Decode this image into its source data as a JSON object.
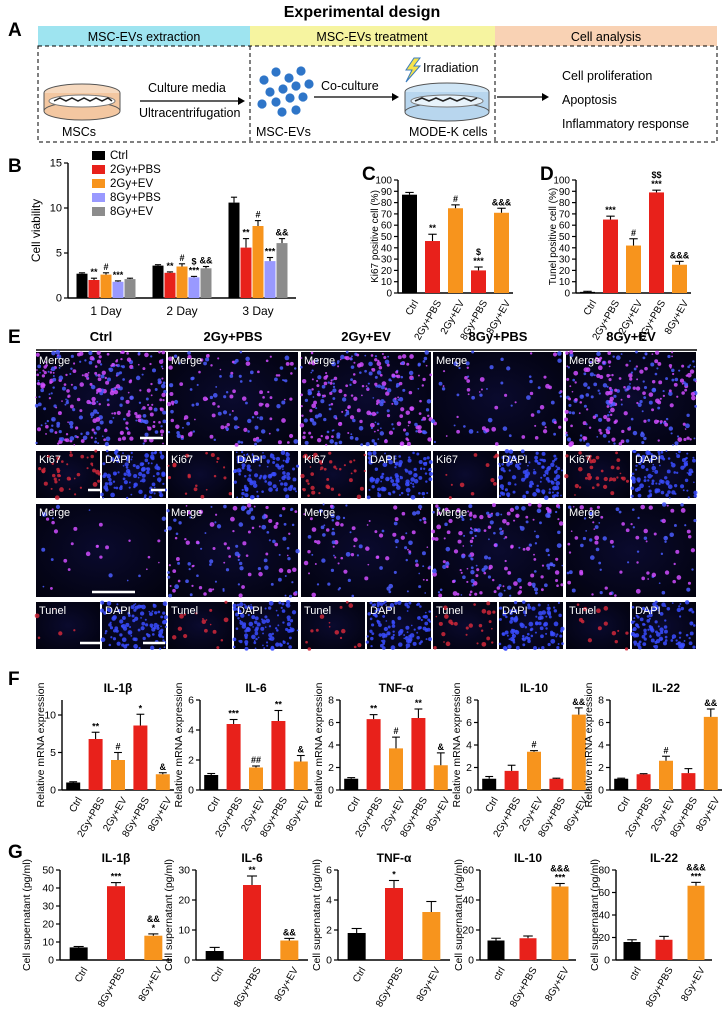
{
  "panel_letters": {
    "a": "A",
    "b": "B",
    "c": "C",
    "d": "D",
    "e": "E",
    "f": "F",
    "g": "G"
  },
  "design": {
    "title": "Experimental  design",
    "stages": [
      "MSC-EVs extraction",
      "MSC-EVs treatment",
      "Cell analysis"
    ],
    "stage_colors": [
      "#9ee4f0",
      "#f6f4a0",
      "#f9d2b4"
    ],
    "culture_media": "Culture media",
    "ultracentrifugation": "Ultracentrifugation",
    "mscs": "MSCs",
    "co_culture": "Co-culture",
    "irradiation": "Irradiation",
    "msc_evs": "MSC-EVs",
    "mode_k": "MODE-K cells",
    "analysis": [
      "Cell proliferation",
      "Apoptosis",
      "Inflammatory response"
    ]
  },
  "colors": {
    "ctrl": "#000000",
    "pbs": "#e8211b",
    "ev": "#f7941d",
    "pbs8": "#9999ff",
    "ev8": "#8c8c8c",
    "title_red": "#e8211b",
    "ev_cell": "#2e75c8"
  },
  "micro": {
    "groups": [
      "Ctrl",
      "2Gy+PBS",
      "2Gy+EV",
      "8Gy+PBS",
      "8Gy+EV"
    ],
    "merge": "Merge",
    "ki67": "Ki67",
    "dapi": "DAPI",
    "tunel": "Tunel"
  },
  "chart_data": [
    {
      "id": "B",
      "type": "bar",
      "categories": [
        "1 Day",
        "2 Day",
        "3 Day"
      ],
      "ylabel": "Cell viability",
      "ylim": [
        0,
        15
      ],
      "yticks": [
        0,
        5,
        10,
        15
      ],
      "series": [
        {
          "name": "Ctrl",
          "color": "#000000",
          "values": [
            2.7,
            3.6,
            10.6
          ],
          "err": [
            0.1,
            0.1,
            0.6
          ],
          "sig": [
            "",
            "",
            ""
          ]
        },
        {
          "name": "2Gy+PBS",
          "color": "#e8211b",
          "values": [
            2.0,
            2.8,
            5.6
          ],
          "err": [
            0.2,
            0.1,
            1.0
          ],
          "sig": [
            "**",
            "**",
            "**"
          ]
        },
        {
          "name": "2Gy+EV",
          "color": "#f7941d",
          "values": [
            2.6,
            3.5,
            8.0
          ],
          "err": [
            0.2,
            0.3,
            0.6
          ],
          "sig": [
            "#",
            "#",
            "#"
          ]
        },
        {
          "name": "8Gy+PBS",
          "color": "#9999ff",
          "values": [
            1.8,
            2.3,
            4.1
          ],
          "err": [
            0.1,
            0.1,
            0.4
          ],
          "sig": [
            "***",
            "$\n***",
            "***"
          ]
        },
        {
          "name": "8Gy+EV",
          "color": "#8c8c8c",
          "values": [
            2.1,
            3.3,
            6.1
          ],
          "err": [
            0.1,
            0.2,
            0.5
          ],
          "sig": [
            "",
            "&&",
            "&&"
          ]
        }
      ]
    },
    {
      "id": "C",
      "type": "bar",
      "categories": [
        "Ctrl",
        "2Gy+PBS",
        "2Gy+EV",
        "8Gy+PBS",
        "8Gy+EV"
      ],
      "ylabel": "Ki67 positive cell (%)",
      "ylim": [
        0,
        100
      ],
      "yticks": [
        0,
        10,
        20,
        30,
        40,
        50,
        60,
        70,
        80,
        90,
        100
      ],
      "values": [
        87,
        46,
        75,
        20,
        71
      ],
      "err": [
        2,
        6,
        3,
        3,
        4
      ],
      "colors": [
        "#000000",
        "#e8211b",
        "#f7941d",
        "#e8211b",
        "#f7941d"
      ],
      "sig": [
        "",
        "**",
        "#",
        "$\n***",
        "&&&"
      ]
    },
    {
      "id": "D",
      "type": "bar",
      "categories": [
        "Ctrl",
        "2Gy+PBS",
        "2Gy+EV",
        "8Gy+PBS",
        "8Gy+EV"
      ],
      "ylabel": "Tunel positive cell (%)",
      "ylim": [
        0,
        100
      ],
      "yticks": [
        0,
        10,
        20,
        30,
        40,
        50,
        60,
        70,
        80,
        90,
        100
      ],
      "values": [
        1,
        65,
        42,
        89,
        25
      ],
      "err": [
        0.5,
        3,
        6,
        2,
        3
      ],
      "colors": [
        "#000000",
        "#e8211b",
        "#f7941d",
        "#e8211b",
        "#f7941d"
      ],
      "sig": [
        "",
        "***",
        "#",
        "$$\n***",
        "&&&"
      ]
    },
    {
      "id": "F1",
      "type": "bar",
      "title": "IL-1β",
      "categories": [
        "Ctrl",
        "2Gy+PBS",
        "2Gy+EV",
        "8Gy+PBS",
        "8Gy+EV"
      ],
      "ylabel": "Relative mRNA expression",
      "ylim": [
        0,
        12
      ],
      "yticks": [
        0,
        5,
        10
      ],
      "values": [
        1.0,
        6.8,
        4.0,
        8.6,
        2.1
      ],
      "err": [
        0.1,
        0.9,
        1.0,
        1.5,
        0.2
      ],
      "colors": [
        "#000000",
        "#e8211b",
        "#f7941d",
        "#e8211b",
        "#f7941d"
      ],
      "sig": [
        "",
        "**",
        "#",
        "*",
        "&"
      ]
    },
    {
      "id": "F2",
      "type": "bar",
      "title": "IL-6",
      "categories": [
        "Ctrl",
        "2Gy+PBS",
        "2Gy+EV",
        "8Gy+PBS",
        "8Gy+EV"
      ],
      "ylabel": "Relative mRNA expression",
      "ylim": [
        0,
        6
      ],
      "yticks": [
        0,
        2,
        4,
        6
      ],
      "values": [
        1.0,
        4.4,
        1.5,
        4.6,
        1.9
      ],
      "err": [
        0.1,
        0.3,
        0.1,
        0.7,
        0.4
      ],
      "colors": [
        "#000000",
        "#e8211b",
        "#f7941d",
        "#e8211b",
        "#f7941d"
      ],
      "sig": [
        "",
        "***",
        "##",
        "**",
        "&"
      ]
    },
    {
      "id": "F3",
      "type": "bar",
      "title": "TNF-α",
      "categories": [
        "Ctrl",
        "2Gy+PBS",
        "2Gy+EV",
        "8Gy+PBS",
        "8Gy+EV"
      ],
      "ylabel": "Relative mRNA expression",
      "ylim": [
        0,
        8
      ],
      "yticks": [
        0,
        2,
        4,
        6,
        8
      ],
      "values": [
        1.0,
        6.3,
        3.7,
        6.4,
        2.2
      ],
      "err": [
        0.1,
        0.4,
        1.0,
        0.8,
        1.1
      ],
      "colors": [
        "#000000",
        "#e8211b",
        "#f7941d",
        "#e8211b",
        "#f7941d"
      ],
      "sig": [
        "",
        "**",
        "#",
        "**",
        "&"
      ]
    },
    {
      "id": "F4",
      "type": "bar",
      "title": "IL-10",
      "categories": [
        "Ctrl",
        "2Gy+PBS",
        "2Gy+EV",
        "8Gy+PBS",
        "8Gy+EV"
      ],
      "ylabel": "Relative mRNA expression",
      "ylim": [
        0,
        8
      ],
      "yticks": [
        0,
        2,
        4,
        6,
        8
      ],
      "values": [
        1.0,
        1.7,
        3.4,
        1.0,
        6.7
      ],
      "err": [
        0.2,
        0.5,
        0.1,
        0.05,
        0.6
      ],
      "colors": [
        "#000000",
        "#e8211b",
        "#f7941d",
        "#e8211b",
        "#f7941d"
      ],
      "sig": [
        "",
        "",
        "#",
        "",
        "&&"
      ]
    },
    {
      "id": "F5",
      "type": "bar",
      "title": "IL-22",
      "categories": [
        "Ctrl",
        "2Gy+PBS",
        "2Gy+EV",
        "8Gy+PBS",
        "8Gy+EV"
      ],
      "ylabel": "Relative mRNA expression",
      "ylim": [
        0,
        8
      ],
      "yticks": [
        0,
        2,
        4,
        6,
        8
      ],
      "values": [
        1.0,
        1.4,
        2.6,
        1.5,
        6.5
      ],
      "err": [
        0.05,
        0.05,
        0.4,
        0.4,
        0.7
      ],
      "colors": [
        "#000000",
        "#e8211b",
        "#f7941d",
        "#e8211b",
        "#f7941d"
      ],
      "sig": [
        "",
        "",
        "#",
        "",
        "&&"
      ]
    },
    {
      "id": "G1",
      "type": "bar",
      "title": "IL-1β",
      "categories": [
        "Ctrl",
        "8Gy+PBS",
        "8Gy+EV"
      ],
      "ylabel": "Cell supernatant (pg/ml)",
      "ylim": [
        0,
        50
      ],
      "yticks": [
        0,
        10,
        20,
        30,
        40,
        50
      ],
      "values": [
        7,
        41,
        13.5
      ],
      "err": [
        0.5,
        2,
        1
      ],
      "colors": [
        "#000000",
        "#e8211b",
        "#f7941d"
      ],
      "sig": [
        "",
        "***",
        "&&\n*"
      ]
    },
    {
      "id": "G2",
      "type": "bar",
      "title": "IL-6",
      "categories": [
        "Ctrl",
        "8Gy+PBS",
        "8Gy+EV"
      ],
      "ylabel": "Cell supernatant (pg/ml)",
      "ylim": [
        0,
        30
      ],
      "yticks": [
        0,
        10,
        20,
        30
      ],
      "values": [
        3,
        25,
        6.5
      ],
      "err": [
        1.2,
        3,
        0.7
      ],
      "colors": [
        "#000000",
        "#e8211b",
        "#f7941d"
      ],
      "sig": [
        "",
        "**",
        "&&"
      ]
    },
    {
      "id": "G3",
      "type": "bar",
      "title": "TNF-α",
      "categories": [
        "Ctrl",
        "8Gy+PBS",
        "8Gy+EV"
      ],
      "ylabel": "Cell supernatant (pg/ml)",
      "ylim": [
        0,
        6
      ],
      "yticks": [
        0,
        2,
        4,
        6
      ],
      "values": [
        1.8,
        4.8,
        3.2
      ],
      "err": [
        0.3,
        0.5,
        0.7
      ],
      "colors": [
        "#000000",
        "#e8211b",
        "#f7941d"
      ],
      "sig": [
        "",
        "*",
        ""
      ]
    },
    {
      "id": "G4",
      "type": "bar",
      "title": "IL-10",
      "categories": [
        "ctrl",
        "8Gy+PBS",
        "8Gy+EV"
      ],
      "ylabel": "Cell supernatant (pg/ml)",
      "ylim": [
        0,
        60
      ],
      "yticks": [
        0,
        20,
        40,
        60
      ],
      "values": [
        13,
        14.5,
        49
      ],
      "err": [
        1.5,
        1.5,
        2
      ],
      "colors": [
        "#000000",
        "#e8211b",
        "#f7941d"
      ],
      "sig": [
        "",
        "",
        "&&&\n***"
      ]
    },
    {
      "id": "G5",
      "type": "bar",
      "title": "IL-22",
      "categories": [
        "ctrl",
        "8Gy+PBS",
        "8Gy+EV"
      ],
      "ylabel": "Cell supernatant (pg/ml)",
      "ylim": [
        0,
        80
      ],
      "yticks": [
        0,
        20,
        40,
        60,
        80
      ],
      "values": [
        16,
        18,
        66
      ],
      "err": [
        2,
        3,
        3
      ],
      "colors": [
        "#000000",
        "#e8211b",
        "#f7941d"
      ],
      "sig": [
        "",
        "",
        "&&&\n***"
      ]
    }
  ]
}
